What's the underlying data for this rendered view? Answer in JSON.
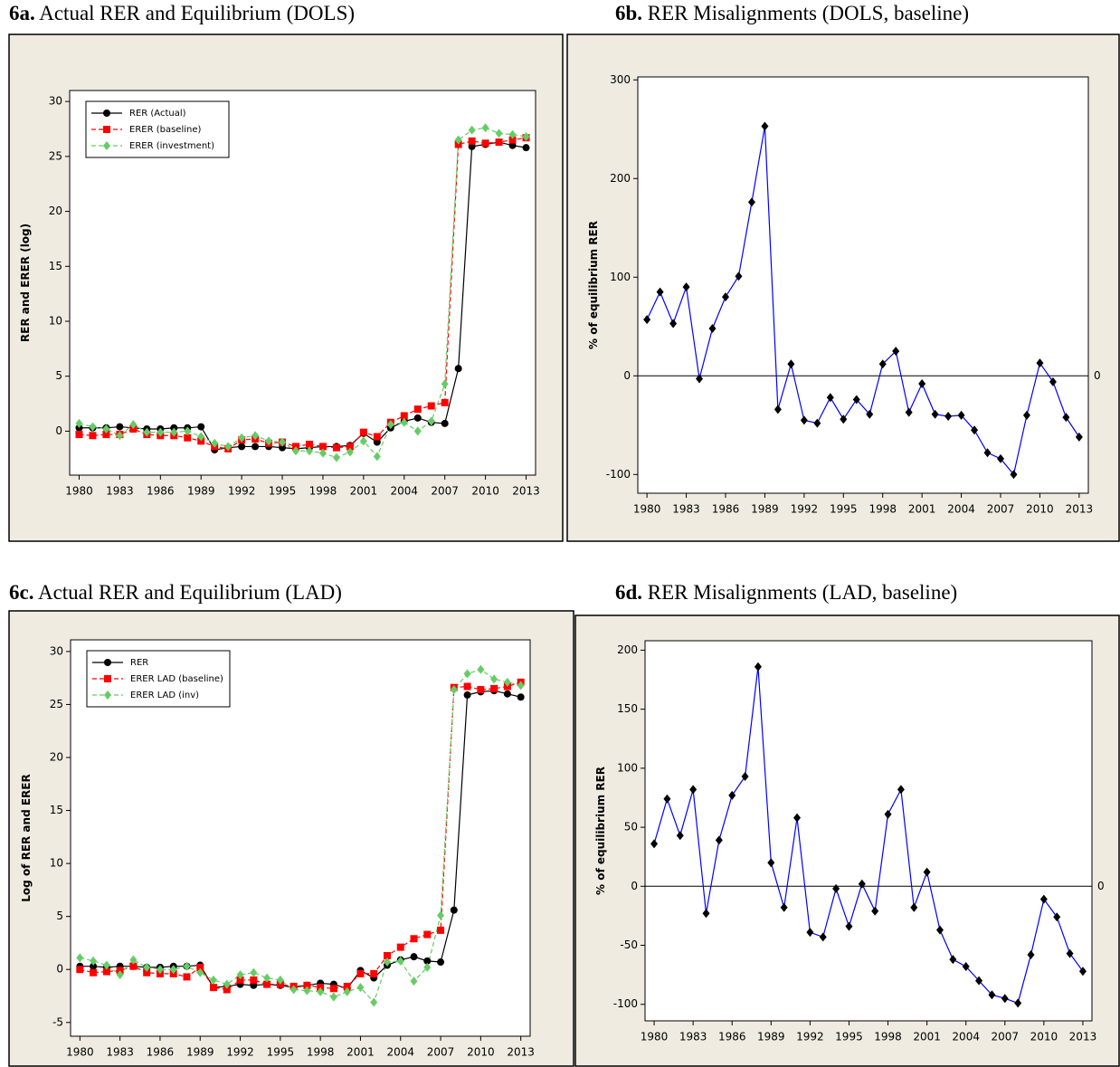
{
  "chart_data": [
    {
      "type": "line",
      "label": "6a.",
      "title": "Actual RER and Equilibrium (DOLS)",
      "ylabel": "RER and ERER (log)",
      "x": [
        1980,
        1981,
        1982,
        1983,
        1984,
        1985,
        1986,
        1987,
        1988,
        1989,
        1990,
        1991,
        1992,
        1993,
        1994,
        1995,
        1996,
        1997,
        1998,
        1999,
        2000,
        2001,
        2002,
        2003,
        2004,
        2005,
        2006,
        2007,
        2008,
        2009,
        2010,
        2011,
        2012,
        2013
      ],
      "xlim": [
        1979.3,
        2013.7
      ],
      "xticks": [
        1980,
        1983,
        1986,
        1989,
        1992,
        1995,
        1998,
        2001,
        2004,
        2007,
        2010,
        2013
      ],
      "ylim": [
        -4,
        31
      ],
      "yticks": [
        0,
        5,
        10,
        15,
        20,
        25,
        30
      ],
      "legend": "upper left",
      "series": [
        {
          "name": "RER (Actual)",
          "color": "#000000",
          "linestyle": "solid",
          "marker": "circle",
          "values": [
            0.3,
            0.3,
            0.3,
            0.4,
            0.3,
            0.2,
            0.2,
            0.3,
            0.3,
            0.4,
            -1.7,
            -1.5,
            -1.4,
            -1.4,
            -1.4,
            -1.5,
            -1.6,
            -1.5,
            -1.4,
            -1.4,
            -1.3,
            -0.2,
            -1.0,
            0.3,
            0.9,
            1.2,
            0.8,
            0.7,
            5.7,
            25.9,
            26.1,
            26.3,
            26.0,
            25.8
          ]
        },
        {
          "name": "ERER (baseline)",
          "color": "#ff0000",
          "linestyle": "dashed",
          "marker": "square",
          "values": [
            -0.3,
            -0.4,
            -0.3,
            -0.3,
            0.2,
            -0.3,
            -0.4,
            -0.4,
            -0.6,
            -0.9,
            -1.4,
            -1.6,
            -0.8,
            -0.7,
            -1.1,
            -1.0,
            -1.4,
            -1.2,
            -1.4,
            -1.5,
            -1.4,
            -0.1,
            -0.5,
            0.8,
            1.4,
            2.0,
            2.3,
            2.6,
            26.1,
            26.4,
            26.2,
            26.3,
            26.5,
            26.7
          ]
        },
        {
          "name": "ERER (investment)",
          "color": "#66cc66",
          "linestyle": "dashed",
          "marker": "diamond",
          "values": [
            0.7,
            0.4,
            0.2,
            -0.4,
            0.6,
            -0.1,
            -0.1,
            -0.1,
            0.0,
            -0.5,
            -1.1,
            -1.4,
            -0.6,
            -0.4,
            -0.9,
            -1.0,
            -1.8,
            -1.8,
            -2.0,
            -2.4,
            -1.9,
            -0.9,
            -2.3,
            0.6,
            0.8,
            0.0,
            0.9,
            4.3,
            26.5,
            27.4,
            27.6,
            27.1,
            27.0,
            26.8
          ]
        }
      ]
    },
    {
      "type": "line",
      "label": "6b.",
      "title": "RER Misalignments (DOLS, baseline)",
      "ylabel": "% of equilibrium RER",
      "x": [
        1980,
        1981,
        1982,
        1983,
        1984,
        1985,
        1986,
        1987,
        1988,
        1989,
        1990,
        1991,
        1992,
        1993,
        1994,
        1995,
        1996,
        1997,
        1998,
        1999,
        2000,
        2001,
        2002,
        2003,
        2004,
        2005,
        2006,
        2007,
        2008,
        2009,
        2010,
        2011,
        2012,
        2013
      ],
      "xlim": [
        1979.3,
        2013.7
      ],
      "xticks": [
        1980,
        1983,
        1986,
        1989,
        1992,
        1995,
        1998,
        2001,
        2004,
        2007,
        2010,
        2013
      ],
      "ylim": [
        -119,
        303
      ],
      "yticks": [
        -100,
        0,
        100,
        200,
        300
      ],
      "reference_line": 0,
      "series": [
        {
          "color": "#0000ff",
          "linestyle": "solid",
          "marker": "diamond",
          "marker_color": "#000000",
          "values": [
            57,
            85,
            53,
            90,
            -3,
            48,
            80,
            101,
            176,
            253,
            -34,
            12,
            -45,
            -48,
            -22,
            -44,
            -24,
            -39,
            12,
            25,
            -37,
            -8,
            -39,
            -41,
            -40,
            -55,
            -78,
            -84,
            -100,
            -40,
            13,
            -6,
            -42,
            -62
          ]
        }
      ]
    },
    {
      "type": "line",
      "label": "6c.",
      "title": "Actual RER and Equilibrium (LAD)",
      "ylabel": "Log of RER and ERER",
      "x": [
        1980,
        1981,
        1982,
        1983,
        1984,
        1985,
        1986,
        1987,
        1988,
        1989,
        1990,
        1991,
        1992,
        1993,
        1994,
        1995,
        1996,
        1997,
        1998,
        1999,
        2000,
        2001,
        2002,
        2003,
        2004,
        2005,
        2006,
        2007,
        2008,
        2009,
        2010,
        2011,
        2012,
        2013
      ],
      "xlim": [
        1979.3,
        2013.7
      ],
      "xticks": [
        1980,
        1983,
        1986,
        1989,
        1992,
        1995,
        1998,
        2001,
        2004,
        2007,
        2010,
        2013
      ],
      "ylim": [
        -6.3,
        31.1
      ],
      "yticks": [
        -5,
        0,
        5,
        10,
        15,
        20,
        25,
        30
      ],
      "legend": "upper left",
      "series": [
        {
          "name": "RER",
          "color": "#000000",
          "linestyle": "solid",
          "marker": "circle",
          "values": [
            0.3,
            0.3,
            0.2,
            0.3,
            0.3,
            0.2,
            0.2,
            0.3,
            0.3,
            0.4,
            -1.7,
            -1.6,
            -1.4,
            -1.5,
            -1.4,
            -1.5,
            -1.7,
            -1.5,
            -1.3,
            -1.4,
            -1.8,
            -0.1,
            -0.8,
            0.4,
            0.9,
            1.2,
            0.8,
            0.7,
            5.6,
            25.9,
            26.2,
            26.3,
            26.0,
            25.7
          ]
        },
        {
          "name": "ERER LAD (baseline)",
          "color": "#ff0000",
          "linestyle": "dashed",
          "marker": "square",
          "values": [
            0.0,
            -0.3,
            -0.2,
            -0.1,
            0.3,
            -0.3,
            -0.4,
            -0.4,
            -0.7,
            0.2,
            -1.7,
            -1.9,
            -1.0,
            -1.0,
            -1.4,
            -1.4,
            -1.6,
            -1.5,
            -1.7,
            -1.8,
            -1.6,
            -0.4,
            -0.4,
            1.3,
            2.1,
            2.9,
            3.3,
            3.7,
            26.6,
            26.7,
            26.4,
            26.5,
            26.7,
            27.1
          ]
        },
        {
          "name": "ERER LAD (inv)",
          "color": "#66cc66",
          "linestyle": "dashed",
          "marker": "diamond",
          "values": [
            1.1,
            0.8,
            0.4,
            -0.5,
            0.9,
            0.2,
            0.0,
            0.0,
            0.3,
            -0.3,
            -1.0,
            -1.4,
            -0.5,
            -0.3,
            -0.8,
            -1.0,
            -1.9,
            -2.0,
            -2.1,
            -2.6,
            -2.1,
            -1.7,
            -3.1,
            0.7,
            0.8,
            -1.1,
            0.2,
            5.1,
            26.4,
            27.9,
            28.3,
            27.4,
            27.1,
            26.8
          ]
        }
      ]
    },
    {
      "type": "line",
      "label": "6d.",
      "title": "RER Misalignments (LAD, baseline)",
      "ylabel": "% of equilibrium RER",
      "x": [
        1980,
        1981,
        1982,
        1983,
        1984,
        1985,
        1986,
        1987,
        1988,
        1989,
        1990,
        1991,
        1992,
        1993,
        1994,
        1995,
        1996,
        1997,
        1998,
        1999,
        2000,
        2001,
        2002,
        2003,
        2004,
        2005,
        2006,
        2007,
        2008,
        2009,
        2010,
        2011,
        2012,
        2013
      ],
      "xlim": [
        1979.3,
        2013.7
      ],
      "xticks": [
        1980,
        1983,
        1986,
        1989,
        1992,
        1995,
        1998,
        2001,
        2004,
        2007,
        2010,
        2013
      ],
      "ylim": [
        -114,
        208
      ],
      "yticks": [
        -100,
        -50,
        0,
        50,
        100,
        150,
        200
      ],
      "reference_line": 0,
      "series": [
        {
          "color": "#0000ff",
          "linestyle": "solid",
          "marker": "diamond",
          "marker_color": "#000000",
          "values": [
            36,
            74,
            43,
            82,
            -23,
            39,
            77,
            93,
            186,
            20,
            -18,
            58,
            -39,
            -43,
            -2,
            -34,
            2,
            -21,
            61,
            82,
            -18,
            12,
            -37,
            -62,
            -68,
            -80,
            -92,
            -95,
            -99,
            -58,
            -11,
            -26,
            -57,
            -72
          ]
        }
      ]
    }
  ]
}
